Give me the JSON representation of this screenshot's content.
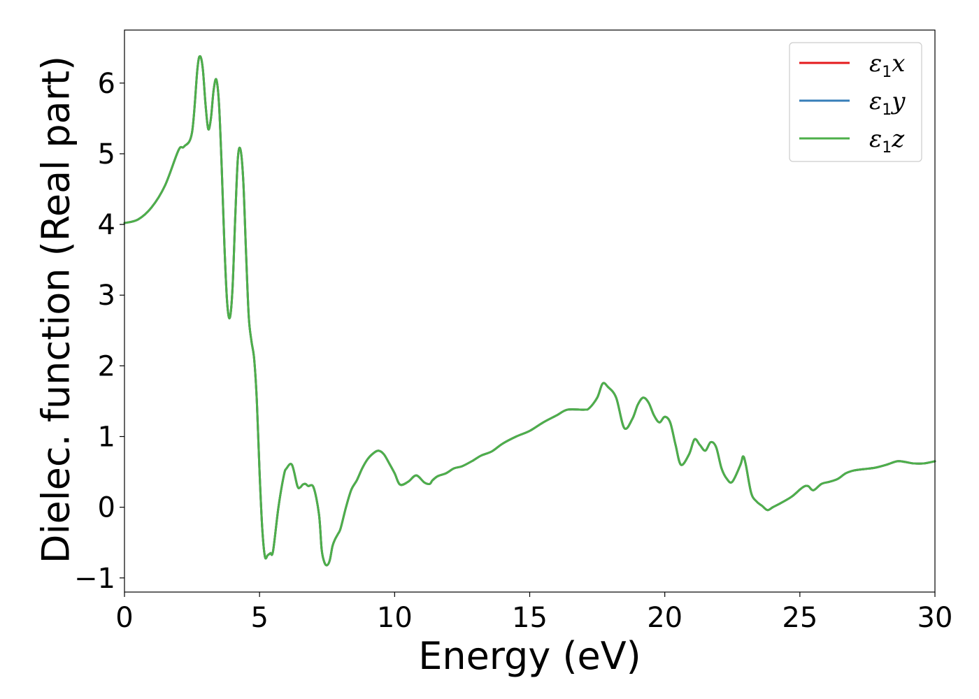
{
  "chart_data": {
    "type": "line",
    "title": "",
    "xlabel": "Energy (eV)",
    "ylabel": "Dielec. function (Real part)",
    "xlim": [
      0,
      30
    ],
    "ylim": [
      -1.2,
      6.75
    ],
    "xticks": [
      0,
      5,
      10,
      15,
      20,
      25,
      30
    ],
    "xtick_labels": [
      "0",
      "5",
      "10",
      "15",
      "20",
      "25",
      "30"
    ],
    "yticks": [
      -1,
      0,
      1,
      2,
      3,
      4,
      5,
      6
    ],
    "ytick_labels": [
      "−1",
      "0",
      "1",
      "2",
      "3",
      "4",
      "5",
      "6"
    ],
    "grid": false,
    "legend_position": "top-right",
    "x": [
      0,
      0.5,
      1.0,
      1.5,
      2.0,
      2.2,
      2.5,
      2.7,
      2.8,
      2.9,
      3.0,
      3.1,
      3.2,
      3.3,
      3.4,
      3.5,
      3.6,
      3.7,
      3.8,
      3.9,
      4.0,
      4.1,
      4.2,
      4.3,
      4.4,
      4.5,
      4.6,
      4.7,
      4.8,
      4.9,
      5.0,
      5.1,
      5.2,
      5.3,
      5.4,
      5.5,
      5.7,
      5.9,
      6.0,
      6.2,
      6.4,
      6.5,
      6.6,
      6.7,
      6.8,
      7.0,
      7.2,
      7.3,
      7.4,
      7.5,
      7.6,
      7.7,
      7.8,
      7.9,
      8.0,
      8.2,
      8.4,
      8.6,
      8.8,
      9.0,
      9.2,
      9.4,
      9.6,
      9.8,
      10.0,
      10.2,
      10.5,
      10.8,
      11.1,
      11.3,
      11.4,
      11.6,
      11.9,
      12.2,
      12.5,
      12.9,
      13.2,
      13.6,
      14.0,
      14.5,
      15.0,
      15.5,
      16.0,
      16.4,
      17.0,
      17.2,
      17.5,
      17.7,
      17.9,
      18.2,
      18.5,
      18.8,
      19.0,
      19.2,
      19.4,
      19.6,
      19.8,
      20.0,
      20.2,
      20.4,
      20.6,
      20.9,
      21.1,
      21.3,
      21.5,
      21.7,
      21.9,
      22.1,
      22.3,
      22.5,
      22.8,
      22.9,
      23.0,
      23.2,
      23.4,
      23.6,
      23.8,
      24.0,
      24.3,
      24.7,
      25.1,
      25.3,
      25.5,
      25.8,
      26.1,
      26.4,
      26.7,
      27.0,
      27.4,
      27.8,
      28.2,
      28.6,
      28.9,
      29.2,
      29.6,
      30.0
    ],
    "series": [
      {
        "name": "x",
        "color": "#e41a1c",
        "y": [
          4.02,
          4.07,
          4.24,
          4.55,
          5.05,
          5.1,
          5.3,
          6.2,
          6.38,
          6.2,
          5.7,
          5.35,
          5.5,
          5.9,
          6.05,
          5.7,
          4.8,
          3.7,
          2.9,
          2.68,
          3.1,
          4.1,
          4.95,
          5.05,
          4.6,
          3.6,
          2.7,
          2.35,
          2.1,
          1.5,
          0.5,
          -0.3,
          -0.7,
          -0.68,
          -0.65,
          -0.62,
          0.0,
          0.45,
          0.55,
          0.6,
          0.3,
          0.28,
          0.32,
          0.33,
          0.3,
          0.28,
          -0.1,
          -0.6,
          -0.78,
          -0.82,
          -0.75,
          -0.55,
          -0.45,
          -0.38,
          -0.3,
          0.0,
          0.25,
          0.38,
          0.55,
          0.68,
          0.76,
          0.8,
          0.75,
          0.62,
          0.48,
          0.32,
          0.36,
          0.45,
          0.35,
          0.33,
          0.38,
          0.44,
          0.48,
          0.55,
          0.58,
          0.66,
          0.73,
          0.79,
          0.9,
          1.0,
          1.08,
          1.2,
          1.3,
          1.38,
          1.38,
          1.4,
          1.55,
          1.75,
          1.7,
          1.55,
          1.12,
          1.25,
          1.45,
          1.55,
          1.48,
          1.3,
          1.2,
          1.28,
          1.2,
          0.88,
          0.6,
          0.75,
          0.96,
          0.88,
          0.8,
          0.92,
          0.85,
          0.55,
          0.4,
          0.36,
          0.6,
          0.72,
          0.6,
          0.2,
          0.08,
          0.02,
          -0.04,
          0.0,
          0.06,
          0.15,
          0.28,
          0.3,
          0.24,
          0.33,
          0.36,
          0.4,
          0.48,
          0.52,
          0.54,
          0.56,
          0.6,
          0.65,
          0.64,
          0.62,
          0.62,
          0.65
        ]
      },
      {
        "name": "y",
        "color": "#377eb8",
        "y": [
          4.02,
          4.07,
          4.24,
          4.55,
          5.05,
          5.1,
          5.3,
          6.2,
          6.38,
          6.2,
          5.7,
          5.35,
          5.5,
          5.9,
          6.05,
          5.7,
          4.8,
          3.7,
          2.9,
          2.68,
          3.1,
          4.1,
          4.95,
          5.05,
          4.6,
          3.6,
          2.7,
          2.35,
          2.1,
          1.5,
          0.5,
          -0.3,
          -0.7,
          -0.68,
          -0.65,
          -0.62,
          0.0,
          0.45,
          0.55,
          0.6,
          0.3,
          0.28,
          0.32,
          0.33,
          0.3,
          0.28,
          -0.1,
          -0.6,
          -0.78,
          -0.82,
          -0.75,
          -0.55,
          -0.45,
          -0.38,
          -0.3,
          0.0,
          0.25,
          0.38,
          0.55,
          0.68,
          0.76,
          0.8,
          0.75,
          0.62,
          0.48,
          0.32,
          0.36,
          0.45,
          0.35,
          0.33,
          0.38,
          0.44,
          0.48,
          0.55,
          0.58,
          0.66,
          0.73,
          0.79,
          0.9,
          1.0,
          1.08,
          1.2,
          1.3,
          1.38,
          1.38,
          1.4,
          1.55,
          1.75,
          1.7,
          1.55,
          1.12,
          1.25,
          1.45,
          1.55,
          1.48,
          1.3,
          1.2,
          1.28,
          1.2,
          0.88,
          0.6,
          0.75,
          0.96,
          0.88,
          0.8,
          0.92,
          0.85,
          0.55,
          0.4,
          0.36,
          0.6,
          0.72,
          0.6,
          0.2,
          0.08,
          0.02,
          -0.04,
          0.0,
          0.06,
          0.15,
          0.28,
          0.3,
          0.24,
          0.33,
          0.36,
          0.4,
          0.48,
          0.52,
          0.54,
          0.56,
          0.6,
          0.65,
          0.64,
          0.62,
          0.62,
          0.65
        ]
      },
      {
        "name": "z",
        "color": "#4daf4a",
        "y": [
          4.02,
          4.07,
          4.24,
          4.55,
          5.05,
          5.1,
          5.3,
          6.2,
          6.38,
          6.2,
          5.7,
          5.35,
          5.5,
          5.9,
          6.05,
          5.7,
          4.8,
          3.7,
          2.9,
          2.68,
          3.1,
          4.1,
          4.95,
          5.05,
          4.6,
          3.6,
          2.7,
          2.35,
          2.1,
          1.5,
          0.5,
          -0.3,
          -0.7,
          -0.68,
          -0.65,
          -0.62,
          0.0,
          0.45,
          0.55,
          0.6,
          0.3,
          0.28,
          0.32,
          0.33,
          0.3,
          0.28,
          -0.1,
          -0.6,
          -0.78,
          -0.82,
          -0.75,
          -0.55,
          -0.45,
          -0.38,
          -0.3,
          0.0,
          0.25,
          0.38,
          0.55,
          0.68,
          0.76,
          0.8,
          0.75,
          0.62,
          0.48,
          0.32,
          0.36,
          0.45,
          0.35,
          0.33,
          0.38,
          0.44,
          0.48,
          0.55,
          0.58,
          0.66,
          0.73,
          0.79,
          0.9,
          1.0,
          1.08,
          1.2,
          1.3,
          1.38,
          1.38,
          1.4,
          1.55,
          1.75,
          1.7,
          1.55,
          1.12,
          1.25,
          1.45,
          1.55,
          1.48,
          1.3,
          1.2,
          1.28,
          1.2,
          0.88,
          0.6,
          0.75,
          0.96,
          0.88,
          0.8,
          0.92,
          0.85,
          0.55,
          0.4,
          0.36,
          0.6,
          0.72,
          0.6,
          0.2,
          0.08,
          0.02,
          -0.04,
          0.0,
          0.06,
          0.15,
          0.28,
          0.3,
          0.24,
          0.33,
          0.36,
          0.4,
          0.48,
          0.52,
          0.54,
          0.56,
          0.6,
          0.65,
          0.64,
          0.62,
          0.62,
          0.65
        ]
      }
    ],
    "legend": [
      {
        "symbol": "ε",
        "sub": "1",
        "suffix": "x",
        "color": "#e41a1c"
      },
      {
        "symbol": "ε",
        "sub": "1",
        "suffix": "y",
        "color": "#377eb8"
      },
      {
        "symbol": "ε",
        "sub": "1",
        "suffix": "z",
        "color": "#4daf4a"
      }
    ]
  }
}
